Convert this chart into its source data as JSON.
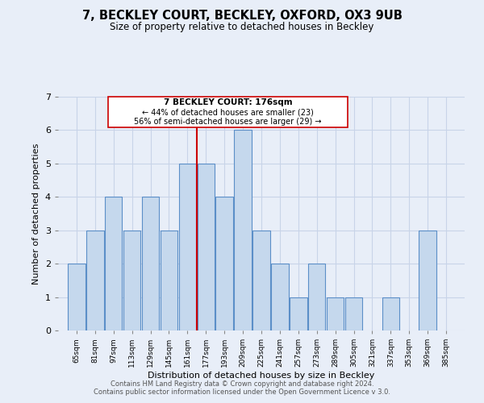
{
  "title": "7, BECKLEY COURT, BECKLEY, OXFORD, OX3 9UB",
  "subtitle": "Size of property relative to detached houses in Beckley",
  "xlabel": "Distribution of detached houses by size in Beckley",
  "ylabel": "Number of detached properties",
  "bin_labels": [
    "65sqm",
    "81sqm",
    "97sqm",
    "113sqm",
    "129sqm",
    "145sqm",
    "161sqm",
    "177sqm",
    "193sqm",
    "209sqm",
    "225sqm",
    "241sqm",
    "257sqm",
    "273sqm",
    "289sqm",
    "305sqm",
    "321sqm",
    "337sqm",
    "353sqm",
    "369sqm",
    "385sqm"
  ],
  "bin_edges": [
    65,
    81,
    97,
    113,
    129,
    145,
    161,
    177,
    193,
    209,
    225,
    241,
    257,
    273,
    289,
    305,
    321,
    337,
    353,
    369,
    385,
    401
  ],
  "counts": [
    2,
    3,
    4,
    3,
    4,
    3,
    5,
    5,
    4,
    6,
    3,
    2,
    1,
    2,
    1,
    1,
    0,
    1,
    0,
    3,
    0
  ],
  "bar_color": "#c5d8ed",
  "bar_edge_color": "#5b8fc8",
  "reference_line_x": 177,
  "reference_line_color": "#cc0000",
  "annotation_box_color": "#cc0000",
  "annotation_text_line1": "7 BECKLEY COURT: 176sqm",
  "annotation_text_line2": "← 44% of detached houses are smaller (23)",
  "annotation_text_line3": "56% of semi-detached houses are larger (29) →",
  "ylim": [
    0,
    7
  ],
  "yticks": [
    0,
    1,
    2,
    3,
    4,
    5,
    6,
    7
  ],
  "footer_line1": "Contains HM Land Registry data © Crown copyright and database right 2024.",
  "footer_line2": "Contains public sector information licensed under the Open Government Licence v 3.0.",
  "grid_color": "#c8d4e8",
  "background_color": "#e8eef8"
}
